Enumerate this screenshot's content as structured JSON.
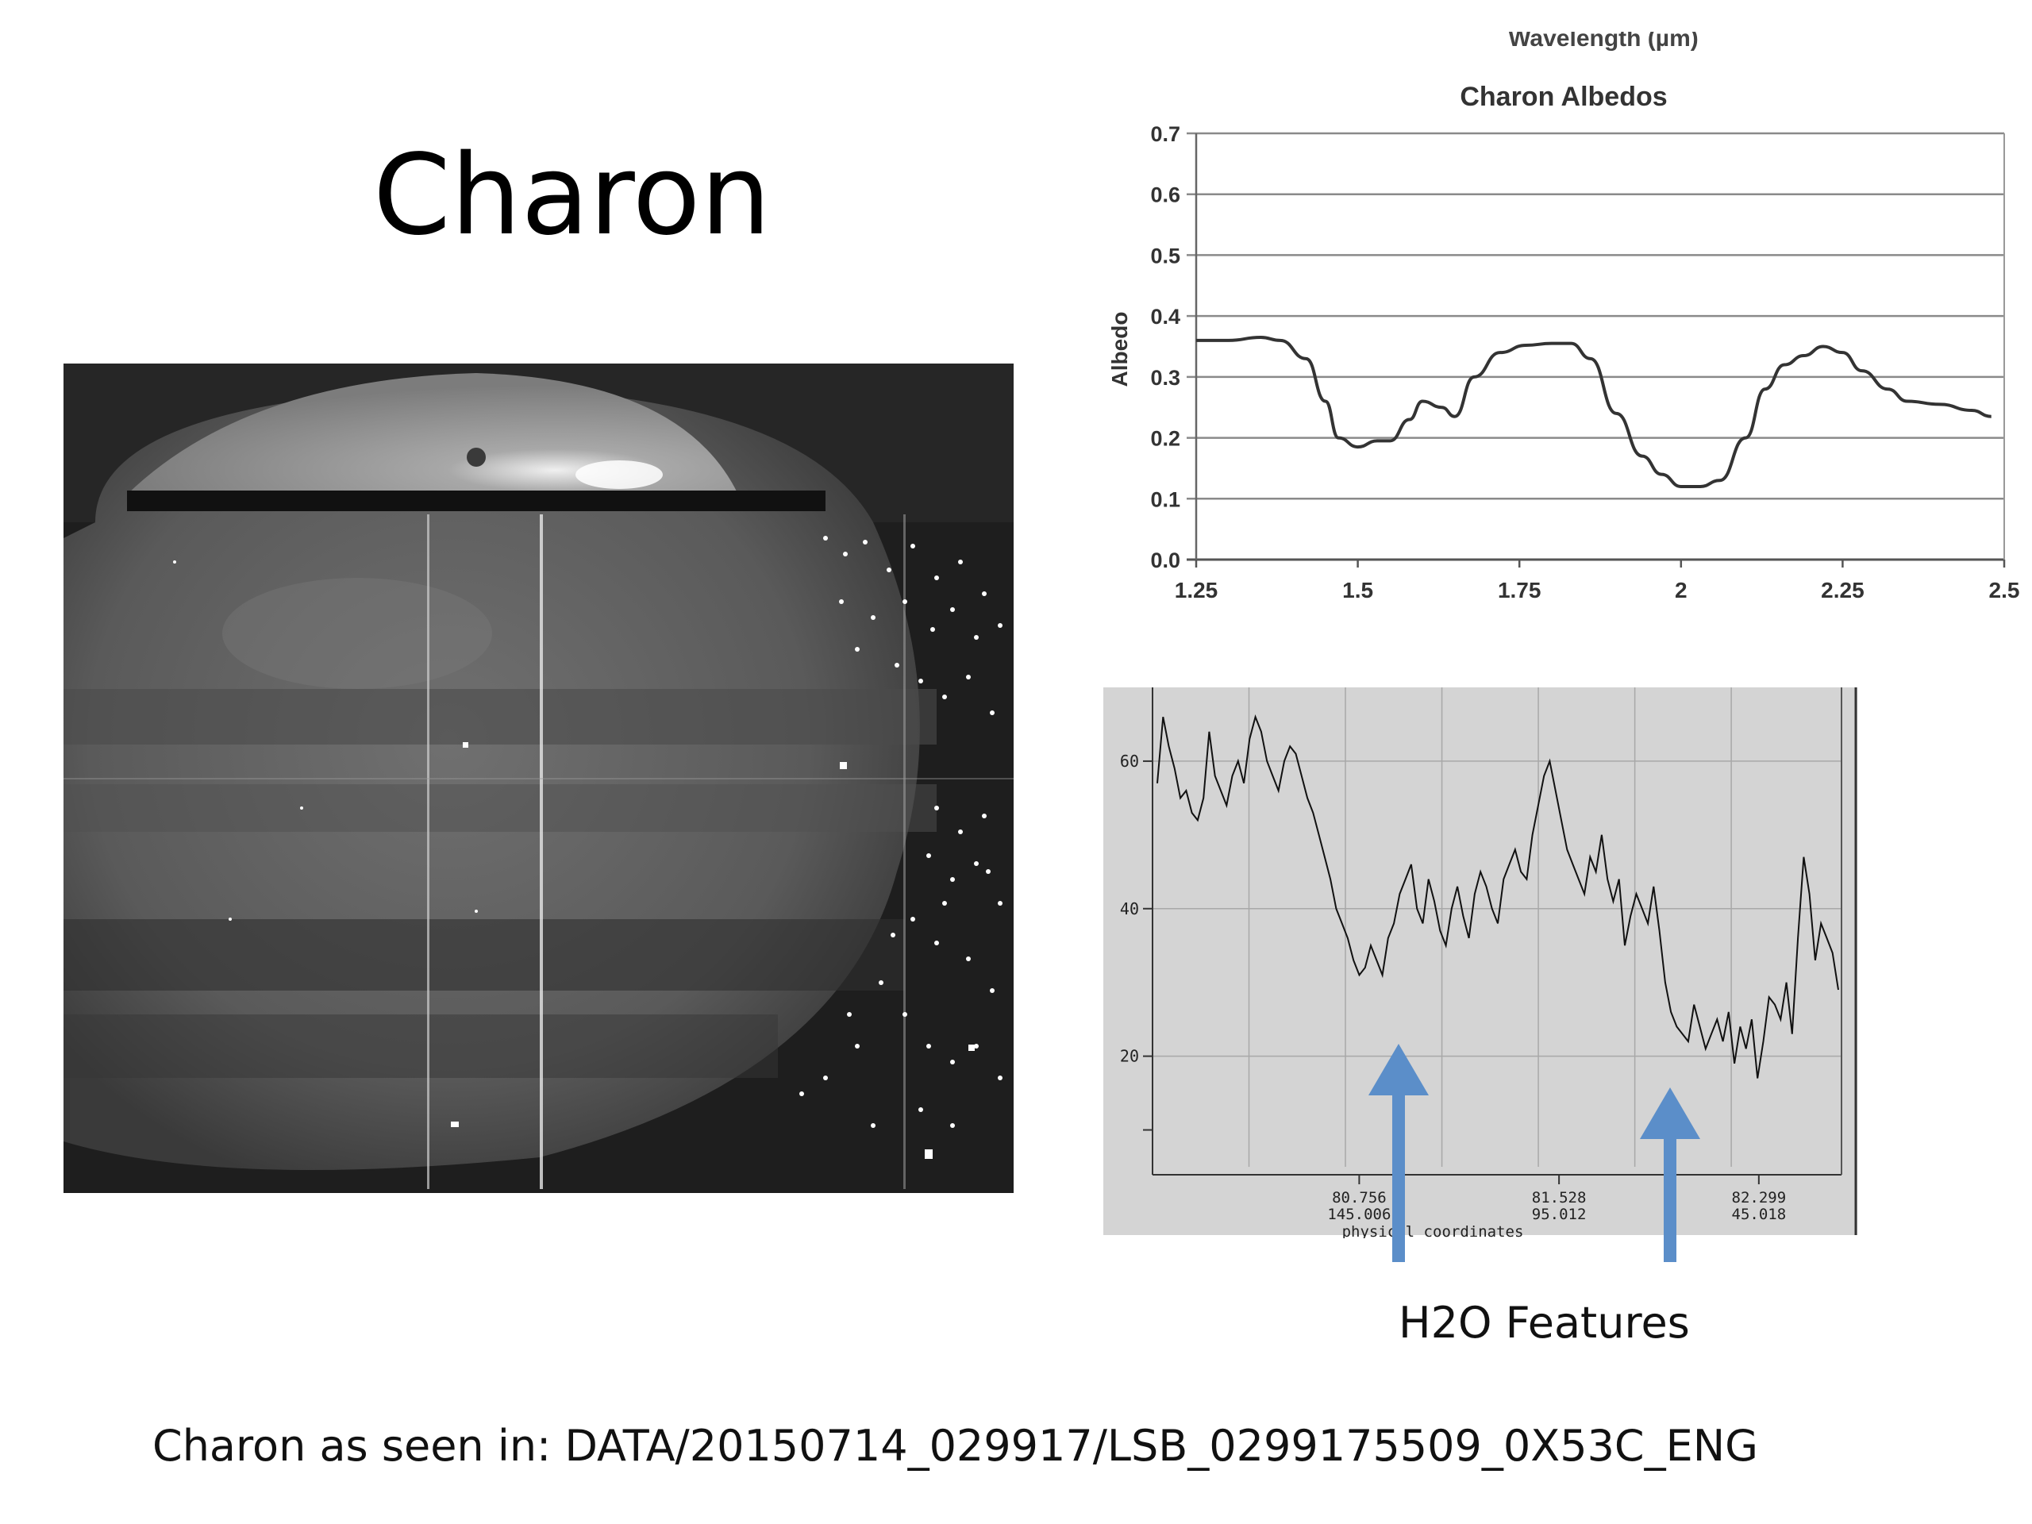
{
  "slide": {
    "title": "Charon",
    "caption": "Charon as seen in: DATA/20150714_029917/LSB_0299175509_0X53C_ENG",
    "feature_label": "H2O Features"
  },
  "colors": {
    "arrow": "#5b8ec9",
    "line": "#333333",
    "grid": "#8a8a8a",
    "spectrum_bg": "#d4d4d4"
  },
  "chart_data": [
    {
      "type": "line",
      "title": "Charon Albedos",
      "top_cropped_label": "Wavelength (µm)",
      "xlabel": "Wavelength (µm)",
      "ylabel": "Albedo",
      "xlim": [
        1.25,
        2.5
      ],
      "ylim": [
        0.0,
        0.7
      ],
      "xticks": [
        1.25,
        1.5,
        1.75,
        2,
        2.25,
        2.5
      ],
      "xtick_labels": [
        "1.25",
        "1.5",
        "1.75",
        "2",
        "2.25",
        "2.5"
      ],
      "yticks": [
        0.0,
        0.1,
        0.2,
        0.3,
        0.4,
        0.5,
        0.6,
        0.7
      ],
      "ytick_labels": [
        "0.0",
        "0.1",
        "0.2",
        "0.3",
        "0.4",
        "0.5",
        "0.6",
        "0.7"
      ],
      "grid": "horizontal",
      "series": [
        {
          "x": [
            1.25,
            1.3,
            1.35,
            1.38,
            1.42,
            1.45,
            1.47,
            1.5,
            1.53,
            1.55,
            1.58,
            1.6,
            1.63,
            1.65,
            1.68,
            1.72,
            1.76,
            1.8,
            1.83,
            1.86,
            1.9,
            1.94,
            1.97,
            2.0,
            2.03,
            2.06,
            2.1,
            2.13,
            2.16,
            2.19,
            2.22,
            2.25,
            2.28,
            2.32,
            2.35,
            2.4,
            2.45,
            2.48
          ],
          "values": [
            0.36,
            0.36,
            0.365,
            0.36,
            0.33,
            0.26,
            0.2,
            0.185,
            0.195,
            0.195,
            0.23,
            0.26,
            0.25,
            0.235,
            0.3,
            0.34,
            0.352,
            0.355,
            0.355,
            0.33,
            0.24,
            0.17,
            0.14,
            0.12,
            0.12,
            0.13,
            0.2,
            0.28,
            0.32,
            0.335,
            0.35,
            0.34,
            0.31,
            0.28,
            0.26,
            0.255,
            0.245,
            0.235
          ]
        }
      ]
    },
    {
      "type": "line",
      "yticks": [
        20,
        40,
        60
      ],
      "ytick_labels": [
        "20",
        "40",
        "60"
      ],
      "ylim": [
        5,
        70
      ],
      "xlim": [
        0,
        1
      ],
      "x_tick_labels": [
        {
          "line1": "80.756",
          "line2": "145.006",
          "pos": 0.3
        },
        {
          "line1": "81.528",
          "line2": "95.012",
          "pos": 0.59
        },
        {
          "line1": "82.299",
          "line2": "45.018",
          "pos": 0.88
        }
      ],
      "x_axis_title": "physical coordinates",
      "series": [
        {
          "values": [
            57,
            66,
            62,
            59,
            55,
            56,
            53,
            52,
            55,
            64,
            58,
            56,
            54,
            58,
            60,
            57,
            63,
            66,
            64,
            60,
            58,
            56,
            60,
            62,
            61,
            58,
            55,
            53,
            50,
            47,
            44,
            40,
            38,
            36,
            33,
            31,
            32,
            35,
            33,
            31,
            36,
            38,
            42,
            44,
            46,
            40,
            38,
            44,
            41,
            37,
            35,
            40,
            43,
            39,
            36,
            42,
            45,
            43,
            40,
            38,
            44,
            46,
            48,
            45,
            44,
            50,
            54,
            58,
            60,
            56,
            52,
            48,
            46,
            44,
            42,
            47,
            45,
            50,
            44,
            41,
            44,
            35,
            39,
            42,
            40,
            38,
            43,
            37,
            30,
            26,
            24,
            23,
            22,
            27,
            24,
            21,
            23,
            25,
            22,
            26,
            19,
            24,
            21,
            25,
            17,
            22,
            28,
            27,
            25,
            30,
            23,
            36,
            47,
            42,
            33,
            38,
            36,
            34,
            29
          ]
        }
      ]
    }
  ]
}
